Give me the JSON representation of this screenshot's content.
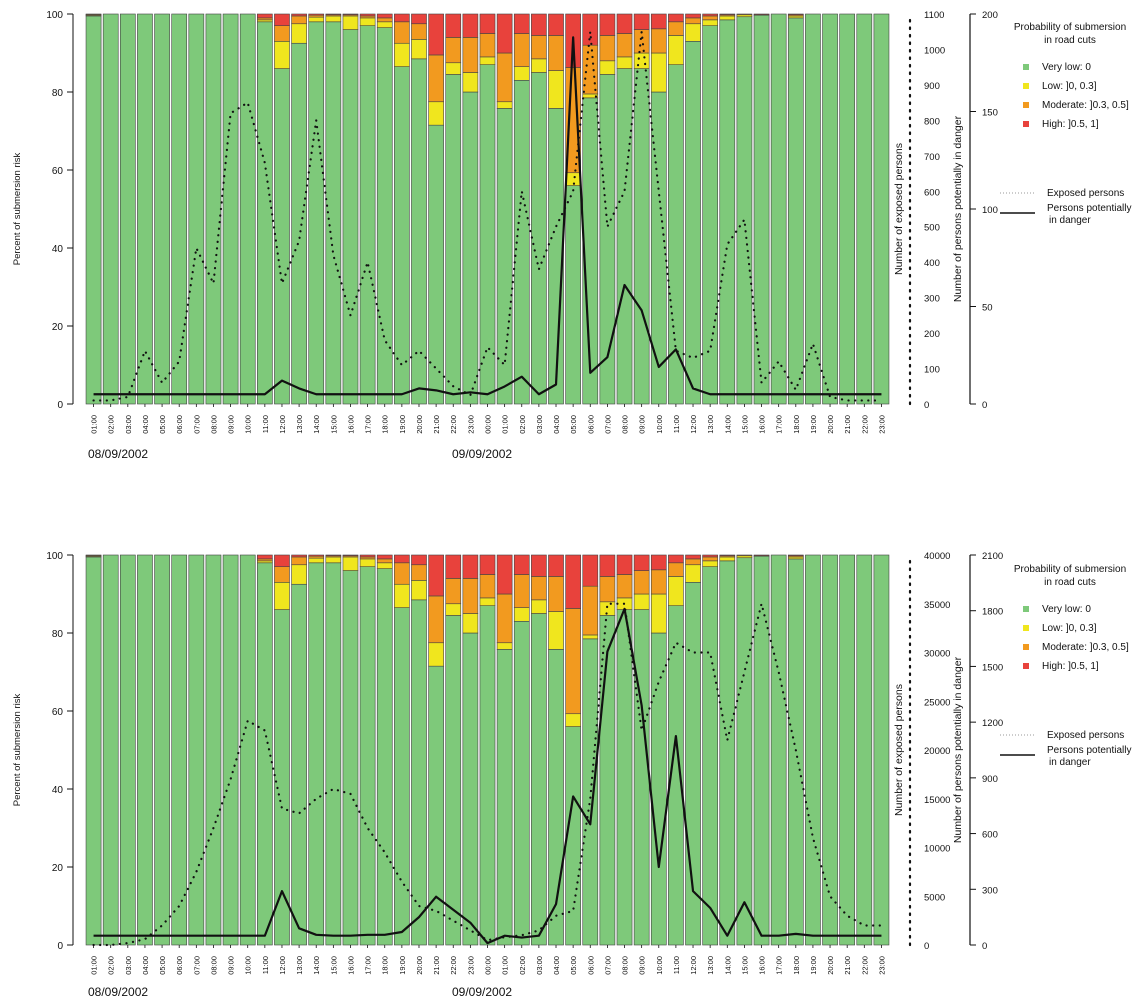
{
  "colors": {
    "very_low": "#7ec97a",
    "low": "#f0e61e",
    "moderate": "#f29a1f",
    "high": "#e8423c",
    "bar_stroke": "#444444",
    "axis": "#111111"
  },
  "chart_data": [
    {
      "type": "bar",
      "stacked": true,
      "categories": [
        "01:00",
        "02:00",
        "03:00",
        "04:00",
        "05:00",
        "06:00",
        "07:00",
        "08:00",
        "09:00",
        "10:00",
        "11:00",
        "12:00",
        "13:00",
        "14:00",
        "15:00",
        "16:00",
        "17:00",
        "18:00",
        "19:00",
        "20:00",
        "21:00",
        "22:00",
        "23:00",
        "00:00",
        "01:00",
        "02:00",
        "03:00",
        "04:00",
        "05:00",
        "06:00",
        "07:00",
        "08:00",
        "09:00",
        "10:00",
        "11:00",
        "12:00",
        "13:00",
        "14:00",
        "15:00",
        "16:00",
        "17:00",
        "18:00",
        "19:00",
        "20:00",
        "21:00",
        "22:00",
        "23:00"
      ],
      "date_labels": [
        "08/09/2002",
        "09/09/2002"
      ],
      "ylabel": "Percent of submersion risk",
      "ylim": [
        0,
        100
      ],
      "yticks": [
        0,
        20,
        40,
        60,
        80,
        100
      ],
      "y2label": "Number of exposed persons",
      "y2lim": [
        0,
        1100
      ],
      "y2ticks": [
        0,
        100,
        200,
        300,
        400,
        500,
        600,
        700,
        800,
        900,
        1000,
        1100
      ],
      "y3label": "Number of persons potentially in danger",
      "y3lim": [
        0,
        200
      ],
      "y3ticks": [
        0,
        50,
        100,
        150,
        200
      ],
      "legend_title": "Probability of submersion\nin road cuts",
      "legend_position": "top-right",
      "series": [
        {
          "name": "Very low: 0",
          "key": "very_low",
          "values": [
            99.5,
            100,
            100,
            100,
            100,
            100,
            100,
            100,
            100,
            100,
            98,
            86,
            92.5,
            98,
            98,
            96,
            97,
            96.5,
            86.5,
            88.5,
            71.5,
            84.5,
            80,
            87,
            75.8,
            83,
            85,
            75.8,
            56,
            78.5,
            84.5,
            86,
            86,
            80,
            87,
            93,
            97,
            98.5,
            99.3,
            99.7,
            100,
            99,
            100,
            100,
            100,
            100,
            100
          ]
        },
        {
          "name": "Low: ]0, 0.3]",
          "key": "low",
          "values": [
            0.2,
            0,
            0,
            0,
            0,
            0,
            0,
            0,
            0,
            0,
            0.5,
            7,
            5,
            1.2,
            1.5,
            3.5,
            2,
            1.5,
            6,
            5,
            6,
            3,
            5,
            2,
            1.7,
            3.5,
            3.5,
            9.7,
            3.3,
            1,
            3.5,
            3,
            4,
            10,
            7.5,
            4.5,
            1.5,
            1,
            0.5,
            0,
            0,
            0.5,
            0,
            0,
            0,
            0,
            0
          ]
        },
        {
          "name": "Moderate: ]0.3, 0.5]",
          "key": "moderate",
          "values": [
            0.2,
            0,
            0,
            0,
            0,
            0,
            0,
            0,
            0,
            0,
            0.5,
            4,
            2,
            0.5,
            0.3,
            0.3,
            0.5,
            1,
            5.5,
            4,
            12,
            6.5,
            9,
            6,
            12.5,
            8.5,
            6,
            9,
            27,
            12.5,
            6.5,
            6,
            6,
            6.2,
            3.5,
            1.5,
            1,
            0.3,
            0.2,
            0.1,
            0,
            0.3,
            0,
            0,
            0,
            0,
            0
          ]
        },
        {
          "name": "High: ]0.5, 1]",
          "key": "high",
          "values": [
            0.1,
            0,
            0,
            0,
            0,
            0,
            0,
            0,
            0,
            0,
            1,
            3,
            0.5,
            0.3,
            0.2,
            0.2,
            0.5,
            1,
            2,
            2.5,
            10.5,
            6,
            6,
            5,
            10,
            5,
            5.5,
            5.5,
            13.7,
            8,
            5.5,
            5,
            4,
            3.8,
            2,
            1,
            0.5,
            0.2,
            0,
            0.2,
            0,
            0.2,
            0,
            0,
            0,
            0,
            0
          ]
        }
      ],
      "lines": [
        {
          "name": "Exposed persons",
          "style": "dotted",
          "axis": "y2",
          "values": [
            10,
            10,
            20,
            150,
            60,
            120,
            440,
            340,
            820,
            850,
            680,
            340,
            460,
            800,
            420,
            250,
            400,
            180,
            110,
            150,
            100,
            50,
            25,
            160,
            110,
            600,
            380,
            500,
            600,
            1050,
            500,
            600,
            1050,
            600,
            150,
            130,
            150,
            450,
            520,
            60,
            120,
            40,
            170,
            20,
            10,
            10,
            10
          ]
        },
        {
          "name": "Persons potentially\nin danger",
          "style": "solid",
          "axis": "y3",
          "values": [
            5,
            5,
            5,
            5,
            5,
            5,
            5,
            5,
            5,
            5,
            5,
            12,
            8,
            5,
            5,
            5,
            5,
            5,
            5,
            8,
            7,
            5,
            6,
            5,
            9,
            14,
            5,
            10,
            188,
            16,
            24,
            61,
            48,
            19,
            28,
            8,
            5,
            5,
            5,
            5,
            5,
            5,
            5,
            5,
            5,
            5,
            5
          ]
        }
      ]
    },
    {
      "type": "bar",
      "stacked": true,
      "categories": [
        "01:00",
        "02:00",
        "03:00",
        "04:00",
        "05:00",
        "06:00",
        "07:00",
        "08:00",
        "09:00",
        "10:00",
        "11:00",
        "12:00",
        "13:00",
        "14:00",
        "15:00",
        "16:00",
        "17:00",
        "18:00",
        "19:00",
        "20:00",
        "21:00",
        "22:00",
        "23:00",
        "00:00",
        "01:00",
        "02:00",
        "03:00",
        "04:00",
        "05:00",
        "06:00",
        "07:00",
        "08:00",
        "09:00",
        "10:00",
        "11:00",
        "12:00",
        "13:00",
        "14:00",
        "15:00",
        "16:00",
        "17:00",
        "18:00",
        "19:00",
        "20:00",
        "21:00",
        "22:00",
        "23:00"
      ],
      "date_labels": [
        "08/09/2002",
        "09/09/2002"
      ],
      "ylabel": "Percent of submersion risk",
      "ylim": [
        0,
        100
      ],
      "yticks": [
        0,
        20,
        40,
        60,
        80,
        100
      ],
      "y2label": "Number of exposed persons",
      "y2lim": [
        0,
        40000
      ],
      "y2ticks": [
        0,
        5000,
        10000,
        15000,
        20000,
        25000,
        30000,
        35000,
        40000
      ],
      "y3label": "Number of persons potentially in danger",
      "y3lim": [
        0,
        2100
      ],
      "y3ticks": [
        0,
        300,
        600,
        900,
        1200,
        1500,
        1800,
        2100
      ],
      "legend_title": "Probability of submersion\nin road cuts",
      "legend_position": "top-right",
      "series": [
        {
          "name": "Very low: 0",
          "key": "very_low",
          "values": [
            99.5,
            100,
            100,
            100,
            100,
            100,
            100,
            100,
            100,
            100,
            98,
            86,
            92.5,
            98,
            98,
            96,
            97,
            96.5,
            86.5,
            88.5,
            71.5,
            84.5,
            80,
            87,
            75.8,
            83,
            85,
            75.8,
            56,
            78.5,
            84.5,
            86,
            86,
            80,
            87,
            93,
            97,
            98.5,
            99.3,
            99.7,
            100,
            99,
            100,
            100,
            100,
            100,
            100
          ]
        },
        {
          "name": "Low: ]0, 0.3]",
          "key": "low",
          "values": [
            0.2,
            0,
            0,
            0,
            0,
            0,
            0,
            0,
            0,
            0,
            0.5,
            7,
            5,
            1.2,
            1.5,
            3.5,
            2,
            1.5,
            6,
            5,
            6,
            3,
            5,
            2,
            1.7,
            3.5,
            3.5,
            9.7,
            3.3,
            1,
            3.5,
            3,
            4,
            10,
            7.5,
            4.5,
            1.5,
            1,
            0.5,
            0,
            0,
            0.5,
            0,
            0,
            0,
            0,
            0
          ]
        },
        {
          "name": "Moderate: ]0.3, 0.5]",
          "key": "moderate",
          "values": [
            0.2,
            0,
            0,
            0,
            0,
            0,
            0,
            0,
            0,
            0,
            0.5,
            4,
            2,
            0.5,
            0.3,
            0.3,
            0.5,
            1,
            5.5,
            4,
            12,
            6.5,
            9,
            6,
            12.5,
            8.5,
            6,
            9,
            27,
            12.5,
            6.5,
            6,
            6,
            6.2,
            3.5,
            1.5,
            1,
            0.3,
            0.2,
            0.1,
            0,
            0.3,
            0,
            0,
            0,
            0,
            0
          ]
        },
        {
          "name": "High: ]0.5, 1]",
          "key": "high",
          "values": [
            0.1,
            0,
            0,
            0,
            0,
            0,
            0,
            0,
            0,
            0,
            1,
            3,
            0.5,
            0.3,
            0.2,
            0.2,
            0.5,
            1,
            2,
            2.5,
            10.5,
            6,
            6,
            5,
            10,
            5,
            5.5,
            5.5,
            13.7,
            8,
            5.5,
            5,
            4,
            3.8,
            2,
            1,
            0.5,
            0.2,
            0,
            0.2,
            0,
            0.2,
            0,
            0,
            0,
            0,
            0
          ]
        }
      ],
      "lines": [
        {
          "name": "Exposed persons",
          "style": "dotted",
          "axis": "y2",
          "values": [
            0,
            0,
            200,
            600,
            2000,
            4000,
            7500,
            12000,
            17000,
            23000,
            22000,
            14000,
            13500,
            15000,
            16000,
            15500,
            12000,
            9500,
            6500,
            4000,
            3500,
            2500,
            1500,
            500,
            800,
            1000,
            1500,
            3000,
            3500,
            15000,
            35000,
            35000,
            22000,
            27000,
            31000,
            30000,
            30000,
            21000,
            28000,
            35000,
            28000,
            20000,
            11000,
            5000,
            3000,
            2000,
            2000
          ]
        },
        {
          "name": "Persons potentially\nin danger",
          "style": "solid",
          "axis": "y3",
          "values": [
            50,
            50,
            50,
            50,
            50,
            50,
            50,
            50,
            50,
            50,
            50,
            290,
            90,
            55,
            50,
            50,
            55,
            55,
            70,
            150,
            260,
            190,
            120,
            10,
            50,
            40,
            50,
            220,
            800,
            650,
            1580,
            1810,
            1290,
            420,
            1125,
            290,
            200,
            50,
            230,
            50,
            50,
            60,
            50,
            50,
            50,
            50,
            50
          ]
        }
      ]
    }
  ]
}
